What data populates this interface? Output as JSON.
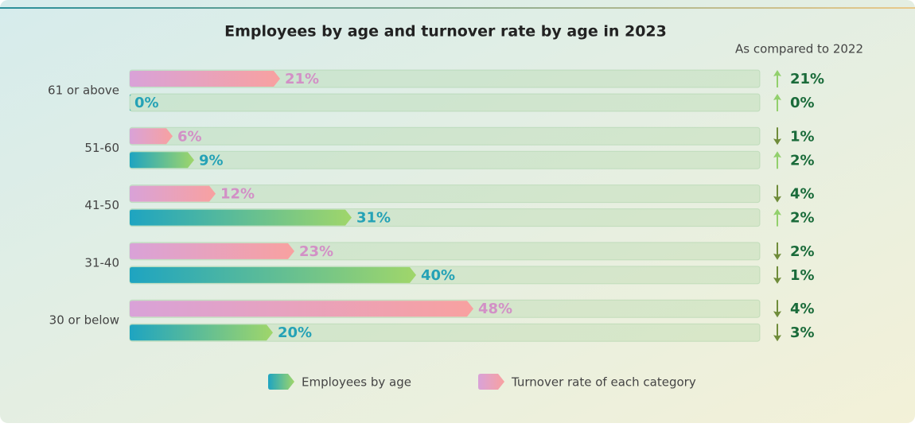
{
  "chart_data": {
    "type": "bar",
    "orientation": "horizontal",
    "title": "Employees by age and turnover rate by age in 2023",
    "subtitle": "As compared to 2022",
    "categories": [
      "61 or above",
      "51-60",
      "41-50",
      "31-40",
      "30 or below"
    ],
    "xlim": [
      0,
      88
    ],
    "series": [
      {
        "name": "Turnover rate of each category",
        "color": "#ee9fb6",
        "values": [
          21,
          6,
          12,
          23,
          48
        ],
        "value_labels": [
          "21%",
          "6%",
          "12%",
          "23%",
          "48%"
        ],
        "change_values": [
          21,
          1,
          4,
          2,
          4
        ],
        "change_labels": [
          "21%",
          "1%",
          "4%",
          "2%",
          "4%"
        ],
        "change_directions": [
          "up",
          "down",
          "down",
          "down",
          "down"
        ]
      },
      {
        "name": "Employees by age",
        "color": "#3fb0b5",
        "values": [
          0,
          9,
          31,
          40,
          20
        ],
        "value_labels": [
          "0%",
          "9%",
          "31%",
          "40%",
          "20%"
        ],
        "change_values": [
          0,
          2,
          2,
          1,
          3
        ],
        "change_labels": [
          "0%",
          "2%",
          "2%",
          "1%",
          "3%"
        ],
        "change_directions": [
          "up",
          "up",
          "up",
          "down",
          "down"
        ]
      }
    ]
  }
}
